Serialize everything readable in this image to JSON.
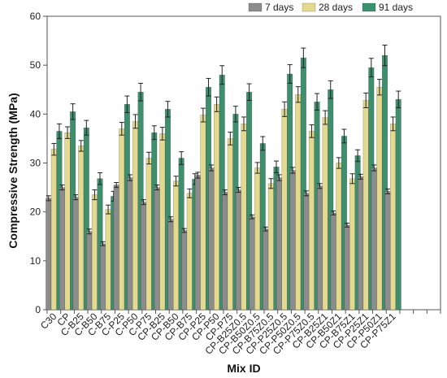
{
  "chart_data": {
    "type": "bar",
    "xlabel": "Mix ID",
    "ylabel": "Compressive Strength (MPa)",
    "ylim": [
      0,
      60
    ],
    "yticks": [
      0,
      10,
      20,
      30,
      40,
      50,
      60
    ],
    "grid": false,
    "legend_position": "top-right",
    "error_bars": true,
    "categories": [
      "C30",
      "CP",
      "C-B25",
      "C-B50",
      "C-B75",
      "C-P25",
      "C-P50",
      "C-P75",
      "CP-B25",
      "CP-B50",
      "CP-B75",
      "CP-P25",
      "CP-P50",
      "CP-P75",
      "CP-B25Z0.5",
      "CP-B50Z0.5",
      "CP-B75Z0.5",
      "CP-P25Z0.5",
      "CP-P50Z0.5",
      "CP-P75Z0.5",
      "CP-B25Z1",
      "CP-B50Z1",
      "CP-B75Z1",
      "CP-P25Z1",
      "CP-P50Z1",
      "CP-P75Z1"
    ],
    "series": [
      {
        "name": "7 days",
        "color": "#8c8c8c",
        "values": [
          22.8,
          25.0,
          23.0,
          16.0,
          13.5,
          25.5,
          27.0,
          22.0,
          25.0,
          18.5,
          16.2,
          27.5,
          29.0,
          24.0,
          24.5,
          19.0,
          16.5,
          27.0,
          28.5,
          23.8,
          25.3,
          19.8,
          17.3,
          27.2,
          29.0,
          24.2
        ],
        "errors": [
          0.5,
          0.5,
          0.5,
          0.5,
          0.4,
          0.5,
          0.6,
          0.5,
          0.5,
          0.5,
          0.4,
          0.6,
          0.6,
          0.5,
          0.5,
          0.4,
          0.4,
          0.6,
          0.6,
          0.5,
          0.5,
          0.4,
          0.4,
          0.5,
          0.6,
          0.5
        ]
      },
      {
        "name": "28 days",
        "color": "#e3d98f",
        "values": [
          32.8,
          36.2,
          33.5,
          23.5,
          20.5,
          37.0,
          38.5,
          31.0,
          36.0,
          26.3,
          23.8,
          39.8,
          42.0,
          35.0,
          38.0,
          29.0,
          25.8,
          41.0,
          44.0,
          36.5,
          39.3,
          30.0,
          26.8,
          42.8,
          45.5,
          38.0
        ],
        "errors": [
          1.2,
          1.2,
          1.1,
          1.0,
          0.9,
          1.3,
          1.4,
          1.2,
          1.3,
          1.0,
          0.9,
          1.4,
          1.5,
          1.3,
          1.4,
          1.1,
          1.0,
          1.5,
          1.6,
          1.3,
          1.4,
          1.1,
          1.0,
          1.5,
          1.6,
          1.4
        ]
      },
      {
        "name": "91 days",
        "color": "#3f8f6f",
        "values": [
          36.5,
          40.5,
          37.2,
          26.8,
          23.2,
          42.0,
          44.5,
          36.2,
          41.0,
          31.0,
          26.7,
          45.5,
          48.0,
          40.0,
          44.5,
          34.0,
          29.2,
          48.2,
          51.5,
          42.5,
          45.0,
          35.5,
          31.5,
          49.5,
          52.0,
          43.0
        ],
        "errors": [
          1.5,
          1.6,
          1.5,
          1.2,
          1.0,
          1.7,
          1.8,
          1.4,
          1.6,
          1.3,
          1.1,
          1.8,
          1.9,
          1.6,
          1.7,
          1.4,
          1.2,
          1.9,
          2.0,
          1.7,
          1.8,
          1.4,
          1.2,
          1.9,
          2.1,
          1.7
        ]
      }
    ]
  }
}
